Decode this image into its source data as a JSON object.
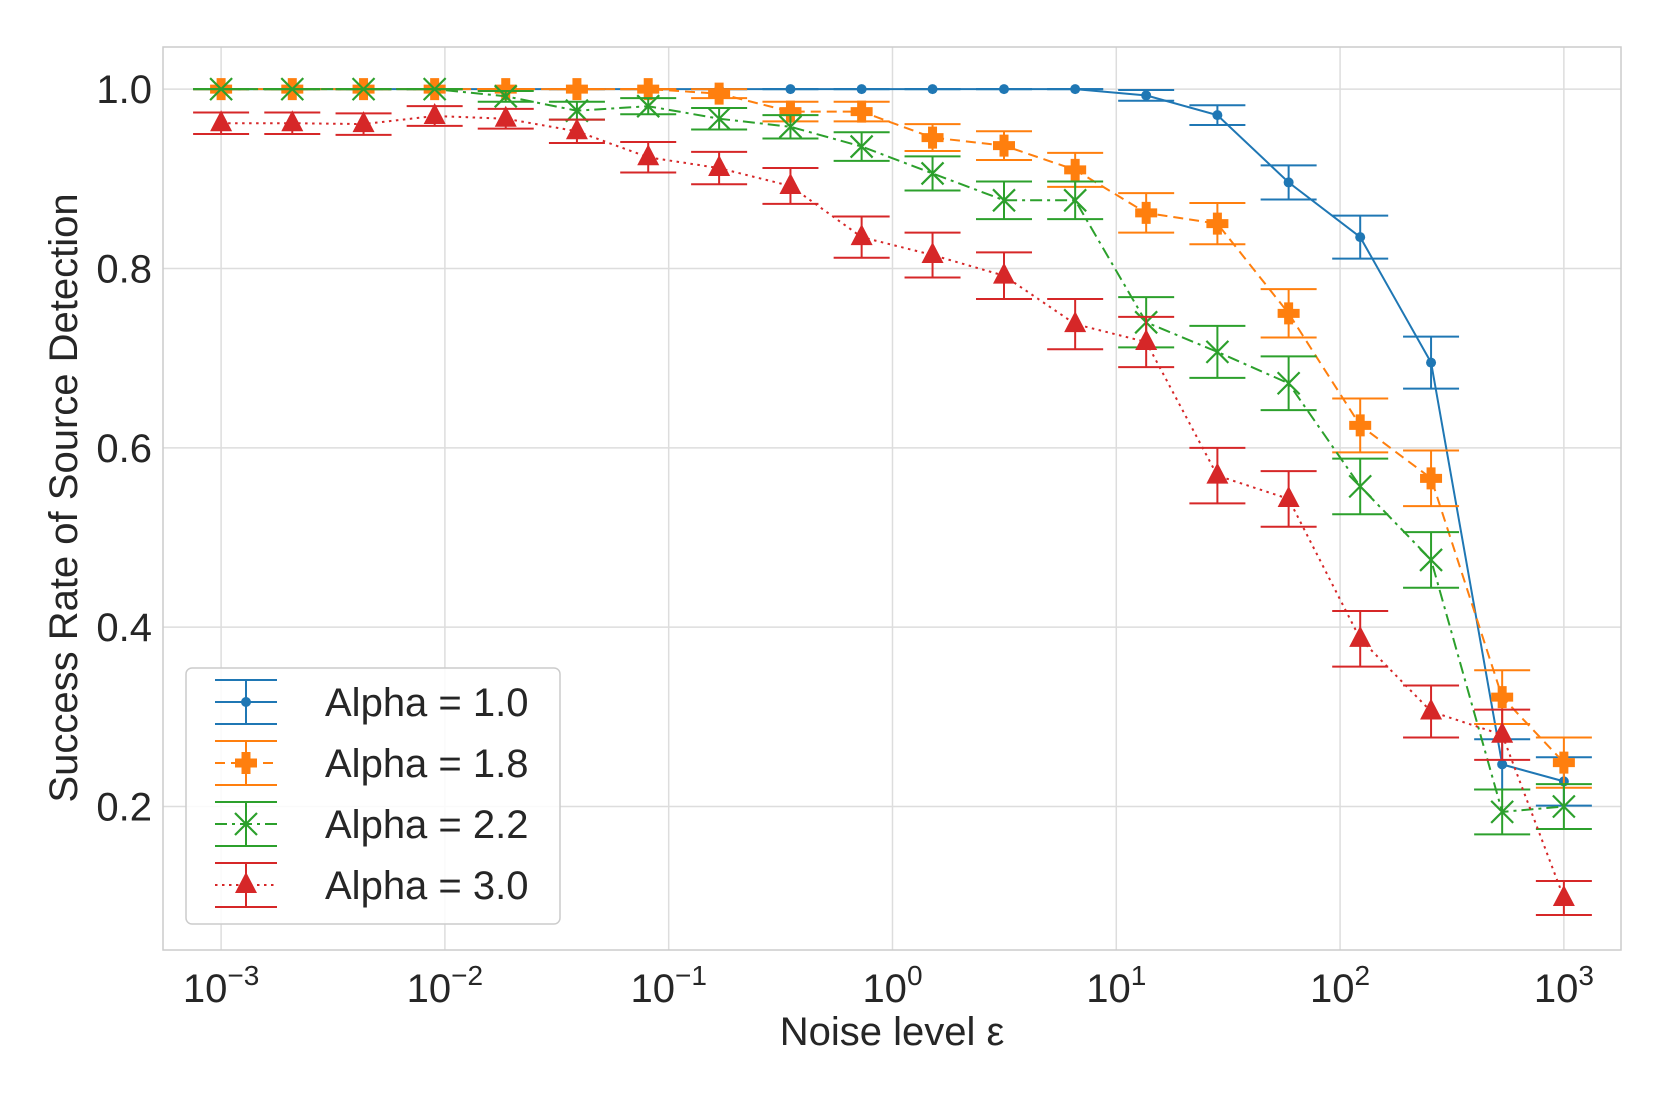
{
  "chart_data": {
    "type": "line",
    "title": "",
    "xlabel": "Noise level ε",
    "ylabel": "Success Rate of Source Detection",
    "xscale": "log",
    "xlim": [
      0.00055,
      1800
    ],
    "ylim": [
      0.04,
      1.047
    ],
    "grid": true,
    "legend_position": "lower-left",
    "x_ticks": [
      {
        "value": 0.001,
        "base": "10",
        "exp": "−3"
      },
      {
        "value": 0.01,
        "base": "10",
        "exp": "−2"
      },
      {
        "value": 0.1,
        "base": "10",
        "exp": "−1"
      },
      {
        "value": 1,
        "base": "10",
        "exp": "0"
      },
      {
        "value": 10,
        "base": "10",
        "exp": "1"
      },
      {
        "value": 100,
        "base": "10",
        "exp": "2"
      },
      {
        "value": 1000,
        "base": "10",
        "exp": "3"
      }
    ],
    "y_ticks": [
      {
        "value": 0.2,
        "label": "0.2"
      },
      {
        "value": 0.4,
        "label": "0.4"
      },
      {
        "value": 0.6,
        "label": "0.6"
      },
      {
        "value": 0.8,
        "label": "0.8"
      },
      {
        "value": 1.0,
        "label": "1.0"
      }
    ],
    "x": [
      0.001,
      0.00208,
      0.00433,
      0.009,
      0.0187,
      0.0389,
      0.081,
      0.168,
      0.35,
      0.728,
      1.51,
      3.15,
      6.55,
      13.6,
      28.3,
      58.9,
      123,
      255,
      530,
      1000
    ],
    "series": [
      {
        "name": "Alpha = 1.0",
        "color": "#1f77b4",
        "marker": "circle",
        "linestyle": "solid",
        "values": [
          1.0,
          1.0,
          1.0,
          1.0,
          1.0,
          1.0,
          1.0,
          1.0,
          1.0,
          1.0,
          1.0,
          1.0,
          1.0,
          0.993,
          0.971,
          0.896,
          0.835,
          0.695,
          0.247,
          0.228
        ],
        "errors": [
          0,
          0,
          0,
          0,
          0,
          0,
          0,
          0,
          0,
          0,
          0,
          0,
          0,
          0.006,
          0.011,
          0.019,
          0.024,
          0.029,
          0.028,
          0.027
        ]
      },
      {
        "name": "Alpha = 1.8",
        "color": "#ff7f0e",
        "marker": "plus",
        "linestyle": "dashed",
        "values": [
          1.0,
          1.0,
          1.0,
          1.0,
          1.0,
          1.0,
          1.0,
          0.995,
          0.975,
          0.975,
          0.946,
          0.937,
          0.91,
          0.862,
          0.85,
          0.75,
          0.625,
          0.566,
          0.322,
          0.249
        ],
        "errors": [
          0,
          0,
          0,
          0,
          0,
          0,
          0,
          0.005,
          0.011,
          0.011,
          0.015,
          0.016,
          0.019,
          0.022,
          0.023,
          0.027,
          0.03,
          0.031,
          0.03,
          0.028
        ]
      },
      {
        "name": "Alpha = 2.2",
        "color": "#2ca02c",
        "marker": "x",
        "linestyle": "dashdot",
        "values": [
          1.0,
          1.0,
          1.0,
          1.0,
          0.992,
          0.976,
          0.981,
          0.967,
          0.958,
          0.936,
          0.906,
          0.876,
          0.876,
          0.74,
          0.707,
          0.672,
          0.557,
          0.475,
          0.194,
          0.2
        ],
        "errors": [
          0,
          0,
          0,
          0,
          0.006,
          0.01,
          0.009,
          0.012,
          0.013,
          0.016,
          0.019,
          0.021,
          0.021,
          0.028,
          0.029,
          0.03,
          0.031,
          0.031,
          0.025,
          0.025
        ]
      },
      {
        "name": "Alpha = 3.0",
        "color": "#d62728",
        "marker": "triangle",
        "linestyle": "dotted",
        "values": [
          0.962,
          0.962,
          0.961,
          0.97,
          0.967,
          0.953,
          0.924,
          0.912,
          0.892,
          0.835,
          0.815,
          0.792,
          0.738,
          0.718,
          0.569,
          0.543,
          0.387,
          0.306,
          0.28,
          0.098
        ],
        "errors": [
          0.012,
          0.012,
          0.012,
          0.011,
          0.011,
          0.013,
          0.017,
          0.018,
          0.02,
          0.023,
          0.025,
          0.026,
          0.028,
          0.028,
          0.031,
          0.031,
          0.031,
          0.029,
          0.028,
          0.019
        ]
      }
    ]
  }
}
